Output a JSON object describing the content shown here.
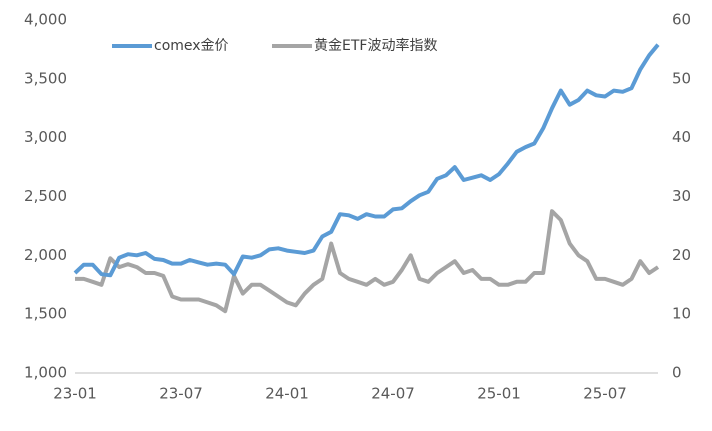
{
  "chart_data": {
    "type": "line",
    "x": [
      "23-01",
      null,
      null,
      null,
      null,
      null,
      null,
      null,
      null,
      null,
      null,
      null,
      "23-07",
      null,
      null,
      null,
      null,
      null,
      null,
      null,
      null,
      null,
      null,
      null,
      "24-01",
      null,
      null,
      null,
      null,
      null,
      null,
      null,
      null,
      null,
      null,
      null,
      "24-07",
      null,
      null,
      null,
      null,
      null,
      null,
      null,
      null,
      null,
      null,
      null,
      "25-01",
      null,
      null,
      null,
      null,
      null,
      null,
      null,
      null,
      null,
      null,
      null,
      "25-07",
      null,
      null,
      null,
      null,
      null,
      null
    ],
    "series": [
      {
        "name": "comex金价",
        "color": "#5b9bd5",
        "axis": "y",
        "values": [
          1850,
          1920,
          1920,
          1840,
          1830,
          1980,
          2010,
          2000,
          2020,
          1970,
          1960,
          1930,
          1930,
          1960,
          1940,
          1920,
          1930,
          1920,
          1840,
          1990,
          1980,
          2000,
          2050,
          2060,
          2040,
          2030,
          2020,
          2040,
          2160,
          2200,
          2350,
          2340,
          2310,
          2350,
          2330,
          2330,
          2390,
          2400,
          2460,
          2510,
          2540,
          2650,
          2680,
          2750,
          2640,
          2660,
          2680,
          2640,
          2690,
          2780,
          2880,
          2920,
          2950,
          3080,
          3250,
          3400,
          3280,
          3320,
          3400,
          3360,
          3350,
          3400,
          3390,
          3420,
          3580,
          3700,
          3790
        ]
      },
      {
        "name": "黄金ETF波动率指数",
        "color": "#a5a5a5",
        "axis": "y2",
        "values": [
          16,
          16,
          15.5,
          15,
          19.5,
          18,
          18.5,
          18,
          17,
          17,
          16.5,
          13,
          12.5,
          12.5,
          12.5,
          12,
          11.5,
          10.5,
          16.5,
          13.5,
          15,
          15,
          14,
          13,
          12,
          11.5,
          13.5,
          15,
          16,
          22,
          17,
          16,
          15.5,
          15,
          16,
          15,
          15.5,
          17.5,
          20,
          16,
          15.5,
          17,
          18,
          19,
          17,
          17.5,
          16,
          16,
          15,
          15,
          15.5,
          15.5,
          17,
          17,
          27.5,
          26,
          22,
          20,
          19,
          16,
          16,
          15.5,
          15,
          16,
          19,
          17,
          18
        ]
      }
    ],
    "ylim": [
      1000,
      4000
    ],
    "yticks": [
      {
        "value": 1000,
        "label": "1,000"
      },
      {
        "value": 1500,
        "label": "1,500"
      },
      {
        "value": 2000,
        "label": "2,000"
      },
      {
        "value": 2500,
        "label": "2,500"
      },
      {
        "value": 3000,
        "label": "3,000"
      },
      {
        "value": 3500,
        "label": "3,500"
      },
      {
        "value": 4000,
        "label": "4,000"
      }
    ],
    "y2lim": [
      0,
      60
    ],
    "y2ticks": [
      0,
      10,
      20,
      30,
      40,
      50,
      60
    ],
    "legend": "top",
    "grid": false
  }
}
